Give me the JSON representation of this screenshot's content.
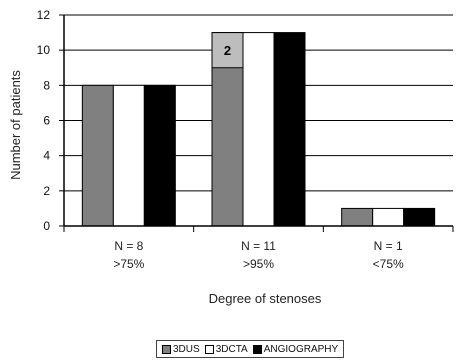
{
  "chart_data": {
    "type": "bar",
    "ylabel": "Number of patients",
    "xlabel": "Degree of stenoses",
    "ylim": [
      0,
      12
    ],
    "yticks": [
      0,
      2,
      4,
      6,
      8,
      10,
      12
    ],
    "grid": true,
    "categories": [
      {
        "n_label": "N = 8",
        "range_label": ">75%"
      },
      {
        "n_label": "N = 11",
        "range_label": ">95%"
      },
      {
        "n_label": "N = 1",
        "range_label": "<75%"
      }
    ],
    "series": [
      {
        "name": "3DUS",
        "values": [
          8,
          11,
          1
        ],
        "color": "#808080"
      },
      {
        "name": "3DCTA",
        "values": [
          8,
          11,
          1
        ],
        "color": "#ffffff"
      },
      {
        "name": "ANGIOGRAPHY",
        "values": [
          8,
          11,
          1
        ],
        "color": "#000000"
      }
    ],
    "annotation": {
      "text": "2",
      "category_index": 1,
      "series_index": 0,
      "from": 9,
      "to": 11,
      "color": "#bdbdbd"
    },
    "legend_position": "bottom"
  }
}
